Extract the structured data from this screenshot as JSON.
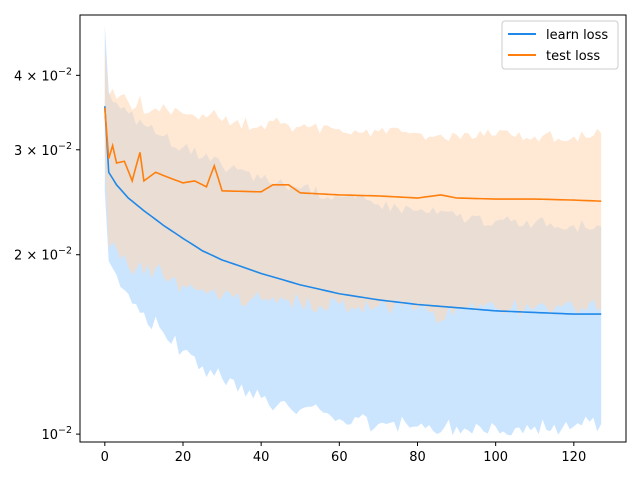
{
  "chart_data": {
    "type": "line",
    "title": "",
    "xlabel": "",
    "ylabel": "",
    "xlim": [
      -6.35,
      133.35
    ],
    "ylim": [
      0.0097,
      0.0505
    ],
    "yscale": "log",
    "grid": false,
    "legend_position": "top-right",
    "x_ticks": [
      {
        "value": 0,
        "label": "0"
      },
      {
        "value": 20,
        "label": "20"
      },
      {
        "value": 40,
        "label": "40"
      },
      {
        "value": 60,
        "label": "60"
      },
      {
        "value": 80,
        "label": "80"
      },
      {
        "value": 100,
        "label": "100"
      },
      {
        "value": 120,
        "label": "120"
      }
    ],
    "y_ticks": [
      {
        "value": 0.01,
        "mantissa": "10",
        "exponent": "−2"
      },
      {
        "value": 0.02,
        "mantissa": "2 × 10",
        "exponent": "−2"
      },
      {
        "value": 0.03,
        "mantissa": "3 × 10",
        "exponent": "−2"
      },
      {
        "value": 0.04,
        "mantissa": "4 × 10",
        "exponent": "−2"
      }
    ],
    "series": [
      {
        "name": "learn loss",
        "color": "#1f88e8",
        "band_color": "#b9dcff",
        "x_end": 127,
        "keyframes": [
          {
            "x": 0,
            "y": 0.0355,
            "lo": 0.0255,
            "hi": 0.0485
          },
          {
            "x": 1,
            "y": 0.0275,
            "lo": 0.0195,
            "hi": 0.0375
          },
          {
            "x": 3,
            "y": 0.0262,
            "lo": 0.0185,
            "hi": 0.036
          },
          {
            "x": 6,
            "y": 0.0249,
            "lo": 0.0172,
            "hi": 0.0345
          },
          {
            "x": 10,
            "y": 0.0237,
            "lo": 0.016,
            "hi": 0.033
          },
          {
            "x": 15,
            "y": 0.0224,
            "lo": 0.0148,
            "hi": 0.0316
          },
          {
            "x": 20,
            "y": 0.0213,
            "lo": 0.0138,
            "hi": 0.0303
          },
          {
            "x": 25,
            "y": 0.0203,
            "lo": 0.013,
            "hi": 0.0291
          },
          {
            "x": 30,
            "y": 0.0196,
            "lo": 0.0124,
            "hi": 0.0282
          },
          {
            "x": 40,
            "y": 0.0186,
            "lo": 0.0115,
            "hi": 0.0268
          },
          {
            "x": 50,
            "y": 0.0178,
            "lo": 0.011,
            "hi": 0.0258
          },
          {
            "x": 60,
            "y": 0.0172,
            "lo": 0.0106,
            "hi": 0.025
          },
          {
            "x": 70,
            "y": 0.0168,
            "lo": 0.0104,
            "hi": 0.0243
          },
          {
            "x": 80,
            "y": 0.0165,
            "lo": 0.0103,
            "hi": 0.0237
          },
          {
            "x": 90,
            "y": 0.0163,
            "lo": 0.0103,
            "hi": 0.0232
          },
          {
            "x": 100,
            "y": 0.0161,
            "lo": 0.0103,
            "hi": 0.0228
          },
          {
            "x": 110,
            "y": 0.016,
            "lo": 0.0103,
            "hi": 0.0226
          },
          {
            "x": 120,
            "y": 0.0159,
            "lo": 0.0103,
            "hi": 0.0224
          },
          {
            "x": 127,
            "y": 0.0159,
            "lo": 0.0104,
            "hi": 0.0223
          }
        ]
      },
      {
        "name": "test loss",
        "color": "#ff7f0e",
        "band_color": "#ffd9b8",
        "x_end": 127,
        "keyframes": [
          {
            "x": 0,
            "y": 0.0353,
            "lo": 0.029,
            "hi": 0.0445
          },
          {
            "x": 1,
            "y": 0.029,
            "lo": 0.0205,
            "hi": 0.037
          },
          {
            "x": 2,
            "y": 0.0305,
            "lo": 0.021,
            "hi": 0.038
          },
          {
            "x": 3,
            "y": 0.0285,
            "lo": 0.0205,
            "hi": 0.0365
          },
          {
            "x": 5,
            "y": 0.0287,
            "lo": 0.02,
            "hi": 0.0372
          },
          {
            "x": 7,
            "y": 0.0266,
            "lo": 0.0185,
            "hi": 0.035
          },
          {
            "x": 9,
            "y": 0.0297,
            "lo": 0.0195,
            "hi": 0.037
          },
          {
            "x": 10,
            "y": 0.0266,
            "lo": 0.0185,
            "hi": 0.0345
          },
          {
            "x": 13,
            "y": 0.0275,
            "lo": 0.019,
            "hi": 0.0352
          },
          {
            "x": 16,
            "y": 0.027,
            "lo": 0.018,
            "hi": 0.035
          },
          {
            "x": 20,
            "y": 0.0264,
            "lo": 0.0178,
            "hi": 0.0345
          },
          {
            "x": 23,
            "y": 0.0266,
            "lo": 0.0175,
            "hi": 0.0342
          },
          {
            "x": 26,
            "y": 0.026,
            "lo": 0.0172,
            "hi": 0.034
          },
          {
            "x": 28,
            "y": 0.0282,
            "lo": 0.0175,
            "hi": 0.035
          },
          {
            "x": 30,
            "y": 0.0256,
            "lo": 0.017,
            "hi": 0.0335
          },
          {
            "x": 40,
            "y": 0.0255,
            "lo": 0.0168,
            "hi": 0.033
          },
          {
            "x": 43,
            "y": 0.0262,
            "lo": 0.017,
            "hi": 0.0335
          },
          {
            "x": 47,
            "y": 0.0262,
            "lo": 0.0168,
            "hi": 0.033
          },
          {
            "x": 50,
            "y": 0.0254,
            "lo": 0.0166,
            "hi": 0.0328
          },
          {
            "x": 60,
            "y": 0.0252,
            "lo": 0.0165,
            "hi": 0.0325
          },
          {
            "x": 70,
            "y": 0.0251,
            "lo": 0.0164,
            "hi": 0.0322
          },
          {
            "x": 80,
            "y": 0.0249,
            "lo": 0.0163,
            "hi": 0.032
          },
          {
            "x": 86,
            "y": 0.0252,
            "lo": 0.0155,
            "hi": 0.0318
          },
          {
            "x": 90,
            "y": 0.0249,
            "lo": 0.0163,
            "hi": 0.0318
          },
          {
            "x": 100,
            "y": 0.0248,
            "lo": 0.0163,
            "hi": 0.0317
          },
          {
            "x": 110,
            "y": 0.0248,
            "lo": 0.0163,
            "hi": 0.0316
          },
          {
            "x": 120,
            "y": 0.0247,
            "lo": 0.0163,
            "hi": 0.0316
          },
          {
            "x": 127,
            "y": 0.0246,
            "lo": 0.0163,
            "hi": 0.032
          }
        ]
      }
    ]
  }
}
